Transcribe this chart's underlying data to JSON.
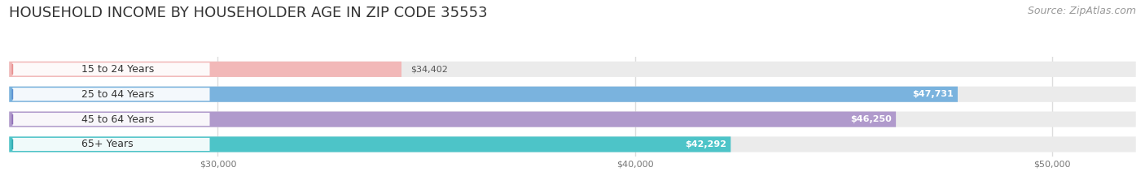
{
  "title": "HOUSEHOLD INCOME BY HOUSEHOLDER AGE IN ZIP CODE 35553",
  "source": "Source: ZipAtlas.com",
  "categories": [
    "15 to 24 Years",
    "25 to 44 Years",
    "45 to 64 Years",
    "65+ Years"
  ],
  "values": [
    34402,
    47731,
    46250,
    42292
  ],
  "bar_colors": [
    "#f2b8b8",
    "#7ab3de",
    "#b09acc",
    "#4dc4c8"
  ],
  "dot_colors": [
    "#e89090",
    "#5a90d0",
    "#9070b8",
    "#30a8b0"
  ],
  "value_colors": [
    "#666666",
    "#ffffff",
    "#ffffff",
    "#ffffff"
  ],
  "xlim_data": [
    25000,
    52000
  ],
  "xaxis_min": 30000,
  "xaxis_max": 50000,
  "xticks": [
    30000,
    40000,
    50000
  ],
  "xtick_labels": [
    "$30,000",
    "$40,000",
    "$50,000"
  ],
  "background_color": "#ffffff",
  "bar_bg_color": "#ebebeb",
  "grid_color": "#dddddd",
  "title_fontsize": 13,
  "source_fontsize": 9,
  "label_fontsize": 9,
  "value_fontsize": 8,
  "bar_height": 0.62,
  "figsize": [
    14.06,
    2.33
  ],
  "dpi": 100
}
